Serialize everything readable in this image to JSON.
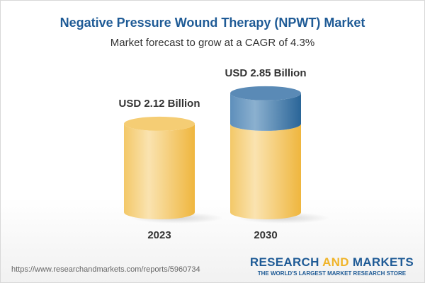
{
  "title": "Negative Pressure Wound Therapy (NPWT) Market",
  "subtitle": "Market forecast to grow at a CAGR of 4.3%",
  "chart_data": {
    "type": "bar",
    "style": "3d-cylinder",
    "categories": [
      "2023",
      "2030"
    ],
    "values": [
      2.12,
      2.85
    ],
    "data_labels": [
      "USD 2.12 Billion",
      "USD 2.85 Billion"
    ],
    "unit": "USD Billion",
    "grid": false,
    "colors": {
      "base": "#f2c25a",
      "growth": "#4a80b0"
    }
  },
  "footer": {
    "url": "https://www.researchandmarkets.com/reports/5960734",
    "logo_part1": "RESEARCH ",
    "logo_part2": "AND",
    "logo_part3": " MARKETS",
    "tagline": "THE WORLD'S LARGEST MARKET RESEARCH STORE"
  }
}
